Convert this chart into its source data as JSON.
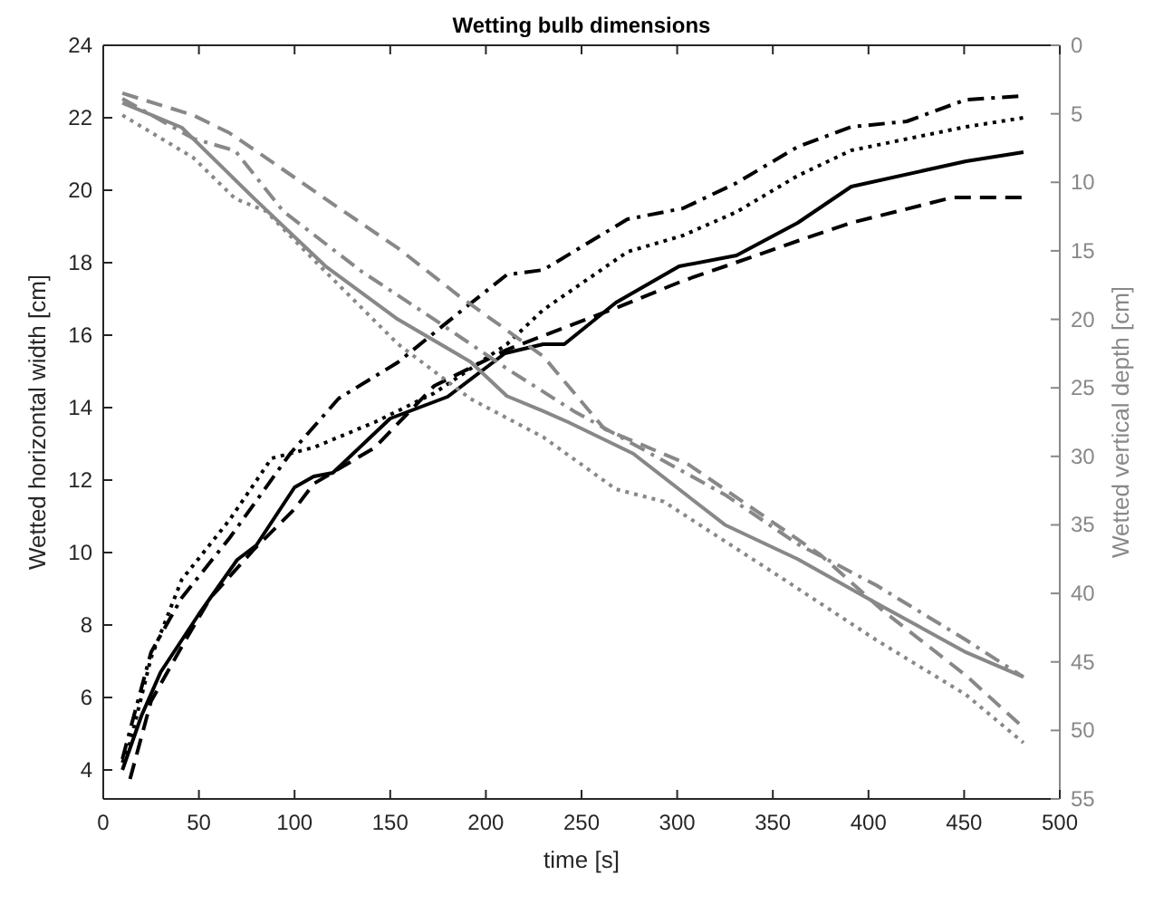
{
  "chart_data": {
    "type": "line",
    "title": "Wetting bulb dimensions",
    "xlabel": "time [s]",
    "ylabel": "Wetted horizontal width [cm]",
    "y2label": "Wetted vertical depth [cm]",
    "xlim": [
      0,
      500
    ],
    "xticks": [
      0,
      50,
      100,
      150,
      200,
      250,
      300,
      350,
      400,
      450,
      500
    ],
    "ylim": [
      3.2,
      24
    ],
    "yticks": [
      4,
      6,
      8,
      10,
      12,
      14,
      16,
      18,
      20,
      22,
      24
    ],
    "y2lim": [
      55,
      0
    ],
    "y2ticks": [
      0,
      5,
      10,
      15,
      20,
      25,
      30,
      35,
      40,
      45,
      50,
      55
    ],
    "grid": false,
    "series": [
      {
        "color": "#000000",
        "line_style": "solid",
        "x": [
          10,
          20,
          30,
          50,
          70,
          80,
          90,
          100,
          110,
          120,
          150,
          180,
          210,
          230,
          241,
          268,
          301,
          331,
          363,
          391,
          451,
          481
        ],
        "values": [
          4.0,
          5.5,
          6.7,
          8.3,
          9.8,
          10.2,
          11,
          11.8,
          12.1,
          12.2,
          13.7,
          14.3,
          15.5,
          15.75,
          15.75,
          16.9,
          17.9,
          18.2,
          19.1,
          20.1,
          20.8,
          21.05
        ]
      },
      {
        "color": "#000000",
        "line_style": "dashed",
        "x": [
          14,
          25,
          41,
          56,
          79,
          100,
          110,
          142,
          173,
          211,
          268,
          303,
          325,
          363,
          391,
          444,
          481
        ],
        "values": [
          3.75,
          5.9,
          7.4,
          8.75,
          10.1,
          11.2,
          11.9,
          12.9,
          14.6,
          15.6,
          16.75,
          17.5,
          17.9,
          18.6,
          19.1,
          19.8,
          19.8
        ]
      },
      {
        "color": "#000000",
        "line_style": "dotted",
        "x": [
          10,
          14,
          25,
          41,
          66,
          88,
          110,
          142,
          173,
          211,
          230,
          274,
          303,
          331,
          363,
          391,
          451,
          481
        ],
        "values": [
          4.2,
          4.75,
          7.1,
          9.25,
          10.9,
          12.6,
          12.9,
          13.6,
          14.4,
          15.75,
          16.7,
          18.3,
          18.75,
          19.4,
          20.4,
          21.1,
          21.75,
          22.0
        ]
      },
      {
        "color": "#000000",
        "line_style": "dashdot",
        "x": [
          10,
          14,
          25,
          41,
          66,
          98,
          123,
          154,
          189,
          211,
          230,
          274,
          303,
          331,
          363,
          391,
          420,
          451,
          481
        ],
        "values": [
          4.3,
          5.1,
          7.25,
          8.75,
          10.4,
          12.75,
          14.25,
          15.25,
          16.75,
          17.67,
          17.8,
          19.2,
          19.5,
          20.2,
          21.2,
          21.75,
          21.9,
          22.5,
          22.6
        ]
      },
      {
        "color": "#888888",
        "axis": "y2",
        "line_style": "solid",
        "x": [
          10,
          41,
          79,
          116,
          154,
          192,
          211,
          230,
          243,
          277,
          325,
          363,
          404,
          451,
          481
        ],
        "values": [
          4.2,
          6,
          11.2,
          16.1,
          20,
          23.1,
          25.6,
          26.7,
          27.5,
          29.8,
          35,
          37.5,
          40.7,
          44.3,
          46.1
        ]
      },
      {
        "color": "#888888",
        "axis": "y2",
        "line_style": "dashed",
        "x": [
          10,
          47,
          66,
          85,
          116,
          154,
          186,
          230,
          262,
          306,
          375,
          407,
          451,
          481
        ],
        "values": [
          3.5,
          5.1,
          6.4,
          8.2,
          11.2,
          14.8,
          18.3,
          22.7,
          28.0,
          30.6,
          37.2,
          41.2,
          46,
          49.8
        ]
      },
      {
        "color": "#888888",
        "axis": "y2",
        "line_style": "dotted",
        "x": [
          10,
          47,
          69,
          85,
          116,
          154,
          192,
          230,
          268,
          293,
          356,
          404,
          451,
          481
        ],
        "values": [
          5.1,
          8.2,
          11.2,
          12.1,
          16.5,
          21.8,
          25.8,
          28.6,
          32.4,
          33.3,
          39,
          43.4,
          47.4,
          50.9
        ]
      },
      {
        "color": "#888888",
        "axis": "y2",
        "line_style": "dashdot",
        "x": [
          10,
          47,
          69,
          94,
          135,
          173,
          211,
          246,
          277,
          325,
          363,
          404,
          451,
          481
        ],
        "values": [
          3.9,
          6.8,
          7.7,
          12.1,
          16.5,
          20,
          23.6,
          26.7,
          29.1,
          32.8,
          36.4,
          39.4,
          43.4,
          46.1
        ]
      }
    ]
  }
}
